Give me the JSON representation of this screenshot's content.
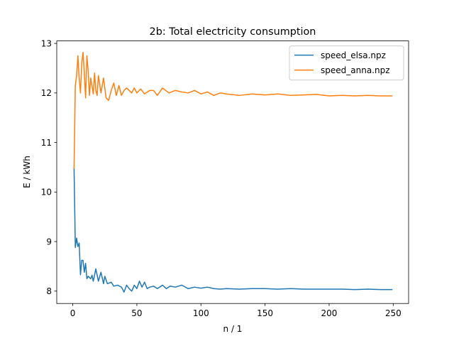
{
  "chart_data": {
    "type": "line",
    "title": "2b: Total electricity consumption",
    "xlabel": "n / 1",
    "ylabel": "E / kWh",
    "xlim": [
      -12.5,
      262
    ],
    "ylim": [
      7.75,
      13.05
    ],
    "xticks": [
      0,
      50,
      100,
      150,
      200,
      250
    ],
    "yticks": [
      8,
      9,
      10,
      11,
      12,
      13
    ],
    "grid": false,
    "legend_position": "top-right",
    "series": [
      {
        "name": "speed_elsa.npz",
        "color": "#1f77b4",
        "x": [
          1,
          2,
          3,
          4,
          5,
          6,
          7,
          8,
          9,
          10,
          11,
          12,
          14,
          15,
          16,
          18,
          20,
          22,
          24,
          25,
          27,
          30,
          32,
          35,
          38,
          40,
          42,
          44,
          46,
          48,
          50,
          52,
          54,
          56,
          58,
          60,
          63,
          66,
          70,
          73,
          76,
          80,
          85,
          90,
          95,
          100,
          105,
          110,
          115,
          120,
          130,
          140,
          150,
          160,
          170,
          180,
          190,
          200,
          210,
          220,
          230,
          240,
          249
        ],
        "y": [
          10.48,
          8.88,
          9.07,
          8.9,
          8.97,
          8.33,
          8.62,
          8.62,
          8.38,
          8.56,
          8.25,
          8.3,
          8.25,
          8.32,
          8.2,
          8.45,
          8.2,
          8.38,
          8.15,
          8.3,
          8.15,
          8.18,
          8.1,
          8.12,
          8.08,
          7.98,
          8.12,
          8.05,
          8.0,
          8.12,
          8.05,
          8.2,
          8.08,
          8.18,
          8.05,
          8.08,
          8.1,
          8.05,
          8.12,
          8.05,
          8.1,
          8.08,
          8.12,
          8.05,
          8.08,
          8.06,
          8.08,
          8.05,
          8.04,
          8.05,
          8.04,
          8.05,
          8.05,
          8.04,
          8.05,
          8.04,
          8.04,
          8.04,
          8.04,
          8.03,
          8.04,
          8.03,
          8.03
        ]
      },
      {
        "name": "speed_anna.npz",
        "color": "#ff7f0e",
        "x": [
          1,
          2,
          3,
          4,
          5,
          6,
          7,
          8,
          9,
          10,
          11,
          12,
          13,
          14,
          15,
          16,
          17,
          18,
          19,
          20,
          22,
          24,
          26,
          28,
          30,
          32,
          34,
          36,
          38,
          40,
          42,
          44,
          46,
          48,
          50,
          53,
          56,
          60,
          63,
          66,
          70,
          75,
          80,
          85,
          90,
          95,
          100,
          105,
          110,
          115,
          120,
          130,
          140,
          150,
          160,
          170,
          180,
          190,
          200,
          210,
          220,
          230,
          240,
          249
        ],
        "y": [
          10.48,
          12.15,
          12.35,
          12.75,
          12.3,
          12.0,
          12.6,
          12.82,
          12.4,
          11.9,
          12.75,
          12.45,
          11.95,
          12.3,
          12.15,
          11.98,
          12.4,
          12.05,
          11.95,
          12.35,
          12.0,
          12.3,
          11.9,
          11.85,
          12.05,
          12.2,
          11.95,
          12.15,
          11.95,
          12.05,
          12.1,
          12.05,
          12.0,
          12.1,
          12.0,
          12.08,
          11.98,
          12.05,
          12.05,
          11.95,
          12.1,
          12.0,
          12.05,
          12.02,
          12.0,
          12.05,
          11.98,
          12.02,
          11.95,
          12.0,
          11.98,
          11.95,
          11.98,
          11.96,
          11.98,
          11.95,
          11.96,
          11.97,
          11.94,
          11.95,
          11.94,
          11.95,
          11.94,
          11.94
        ]
      }
    ]
  }
}
